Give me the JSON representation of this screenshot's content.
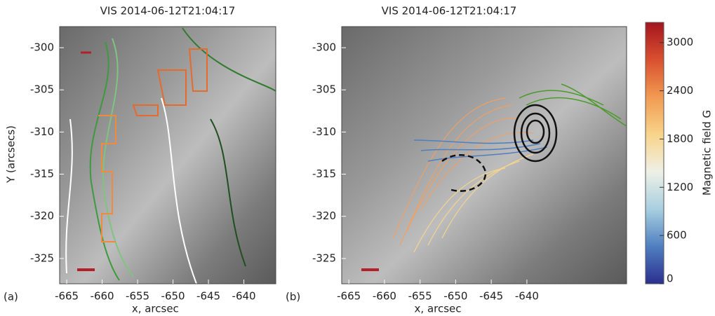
{
  "chart_data": [
    {
      "type": "image",
      "title": "VIS  2014-06-12T21:04:17",
      "panel_label": "(a)",
      "xlabel": "x, arcsec",
      "ylabel": "Y (arcsecs)",
      "xlim": [
        -666,
        -635.5
      ],
      "ylim": [
        -297.5,
        -328
      ],
      "xticks": [
        -665,
        -660,
        -655,
        -650,
        -645,
        -640
      ],
      "yticks": [
        -300,
        -305,
        -310,
        -315,
        -320,
        -325
      ]
    },
    {
      "type": "image",
      "title": "VIS  2014-06-12T21:04:17",
      "panel_label": "(b)",
      "xlabel": "x, arcsec",
      "xlim": [
        -666,
        -626
      ],
      "ylim": [
        -297.5,
        -328
      ],
      "xticks": [
        -665,
        -660,
        -655,
        -650,
        -645,
        -640
      ],
      "yticks": [
        -300,
        -305,
        -310,
        -315,
        -320,
        -325
      ],
      "colorbar": {
        "label": "Magnetic field  G",
        "lim": [
          0,
          3250
        ],
        "ticks": [
          0,
          600,
          1200,
          1800,
          2400,
          3000
        ],
        "colors": [
          "#2b2f8f",
          "#4f7fc0",
          "#a8cfe0",
          "#eef0e6",
          "#f8d48a",
          "#f19a52",
          "#d9502f",
          "#a3151f"
        ]
      }
    }
  ]
}
